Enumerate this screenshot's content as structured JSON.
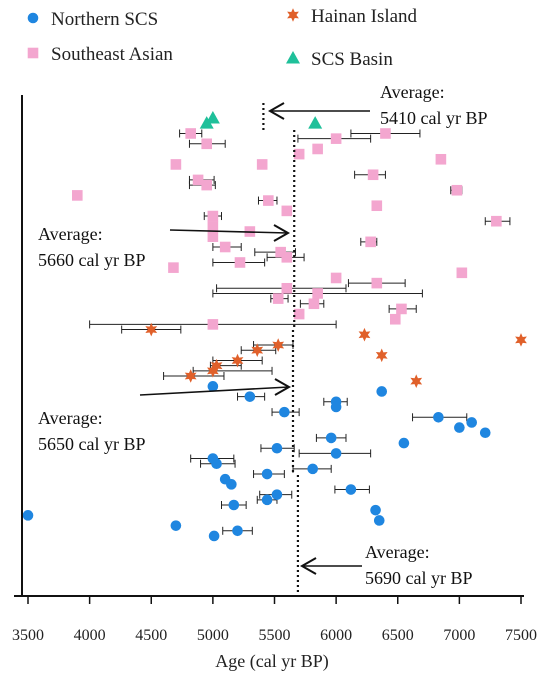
{
  "chart_data": {
    "type": "scatter",
    "xlabel": "Age (cal yr BP)",
    "ylabel": "",
    "xlim": [
      3500,
      7500
    ],
    "x_ticks": [
      "3500",
      "4000",
      "4500",
      "5000",
      "5500",
      "6000",
      "6500",
      "7000",
      "7500"
    ],
    "grid": false,
    "legend_position": "top",
    "legend": [
      {
        "name": "Northern SCS",
        "marker": "circle",
        "color": "#1f86e0"
      },
      {
        "name": "Hainan Island",
        "marker": "star",
        "color": "#e0602a"
      },
      {
        "name": "Southeast Asian",
        "marker": "square",
        "color": "#f3a6cf"
      },
      {
        "name": "SCS Basin",
        "marker": "triangle",
        "color": "#1fc09a"
      }
    ],
    "series": [
      {
        "name": "SCS Basin",
        "marker": "triangle",
        "color": "#1fc09a",
        "points": [
          {
            "x": 4950,
            "y": 1
          },
          {
            "x": 5000,
            "y": 0
          },
          {
            "x": 5830,
            "y": 1
          }
        ]
      },
      {
        "name": "Southeast Asian",
        "marker": "square",
        "color": "#f3a6cf",
        "points": [
          {
            "x": 4820,
            "y": 3,
            "xerr": [
              4730,
              4910
            ]
          },
          {
            "x": 6400,
            "y": 3,
            "xerr": [
              6120,
              6680
            ]
          },
          {
            "x": 6000,
            "y": 4,
            "xerr": [
              5690,
              6280
            ]
          },
          {
            "x": 4950,
            "y": 5,
            "xerr": [
              4810,
              5100
            ]
          },
          {
            "x": 5850,
            "y": 6
          },
          {
            "x": 5700,
            "y": 7
          },
          {
            "x": 4700,
            "y": 9
          },
          {
            "x": 5400,
            "y": 9
          },
          {
            "x": 6850,
            "y": 8
          },
          {
            "x": 6300,
            "y": 11,
            "xerr": [
              6150,
              6400
            ]
          },
          {
            "x": 4880,
            "y": 12,
            "xerr": [
              4810,
              5010
            ]
          },
          {
            "x": 4950,
            "y": 13,
            "xerr": [
              4810,
              5020
            ]
          },
          {
            "x": 6980,
            "y": 14,
            "xerr": [
              6930,
              7020
            ]
          },
          {
            "x": 3900,
            "y": 15
          },
          {
            "x": 5450,
            "y": 16,
            "xerr": [
              5370,
              5520
            ]
          },
          {
            "x": 6330,
            "y": 17
          },
          {
            "x": 5600,
            "y": 18
          },
          {
            "x": 5000,
            "y": 19,
            "xerr": [
              4930,
              5070
            ]
          },
          {
            "x": 7300,
            "y": 20,
            "xerr": [
              7210,
              7410
            ]
          },
          {
            "x": 5000,
            "y": 21
          },
          {
            "x": 5300,
            "y": 22
          },
          {
            "x": 5000,
            "y": 23
          },
          {
            "x": 6280,
            "y": 24,
            "xerr": [
              6200,
              6330
            ]
          },
          {
            "x": 5100,
            "y": 25,
            "xerr": [
              5000,
              5230
            ]
          },
          {
            "x": 5550,
            "y": 26,
            "xerr": [
              5340,
              5670
            ]
          },
          {
            "x": 5600,
            "y": 27,
            "xerr": [
              5440,
              5740
            ]
          },
          {
            "x": 4680,
            "y": 29
          },
          {
            "x": 5220,
            "y": 28,
            "xerr": [
              5000,
              5420
            ]
          },
          {
            "x": 7020,
            "y": 30
          },
          {
            "x": 6000,
            "y": 31
          },
          {
            "x": 6330,
            "y": 32,
            "xerr": [
              6100,
              6560
            ]
          },
          {
            "x": 5600,
            "y": 33,
            "xerr": [
              5030,
              6080
            ]
          },
          {
            "x": 5850,
            "y": 34,
            "xerr": [
              5000,
              6700
            ]
          },
          {
            "x": 5530,
            "y": 35,
            "xerr": [
              5470,
              5610
            ]
          },
          {
            "x": 5820,
            "y": 36,
            "xerr": [
              5710,
              5900
            ]
          },
          {
            "x": 6530,
            "y": 37,
            "xerr": [
              6430,
              6650
            ]
          },
          {
            "x": 5700,
            "y": 38
          },
          {
            "x": 6480,
            "y": 39
          },
          {
            "x": 5000,
            "y": 40,
            "xerr": [
              4000,
              6000
            ]
          }
        ]
      },
      {
        "name": "Hainan Island",
        "marker": "star",
        "color": "#e0602a",
        "points": [
          {
            "x": 4500,
            "y": 41,
            "xerr": [
              4260,
              4740
            ]
          },
          {
            "x": 6230,
            "y": 42
          },
          {
            "x": 7500,
            "y": 43
          },
          {
            "x": 5530,
            "y": 44,
            "xerr": [
              5330,
              5650
            ]
          },
          {
            "x": 5360,
            "y": 45,
            "xerr": [
              5230,
              5510
            ]
          },
          {
            "x": 6370,
            "y": 46
          },
          {
            "x": 5200,
            "y": 47,
            "xerr": [
              5000,
              5400
            ]
          },
          {
            "x": 5030,
            "y": 48,
            "xerr": [
              4980,
              5230
            ]
          },
          {
            "x": 5000,
            "y": 49,
            "xerr": [
              4840,
              5480
            ]
          },
          {
            "x": 4820,
            "y": 50,
            "xerr": [
              4600,
              5090
            ]
          },
          {
            "x": 6650,
            "y": 51
          }
        ]
      },
      {
        "name": "Northern SCS",
        "marker": "circle",
        "color": "#1f86e0",
        "points": [
          {
            "x": 5000,
            "y": 52
          },
          {
            "x": 6370,
            "y": 53
          },
          {
            "x": 5300,
            "y": 54,
            "xerr": [
              5200,
              5420
            ]
          },
          {
            "x": 6000,
            "y": 55,
            "xerr": [
              5900,
              6090
            ]
          },
          {
            "x": 6000,
            "y": 56
          },
          {
            "x": 5580,
            "y": 57,
            "xerr": [
              5480,
              5700
            ]
          },
          {
            "x": 6830,
            "y": 58,
            "xerr": [
              6620,
              7060
            ]
          },
          {
            "x": 7100,
            "y": 59
          },
          {
            "x": 7000,
            "y": 60
          },
          {
            "x": 7210,
            "y": 61
          },
          {
            "x": 5960,
            "y": 62,
            "xerr": [
              5840,
              6080
            ]
          },
          {
            "x": 6550,
            "y": 63
          },
          {
            "x": 5520,
            "y": 64,
            "xerr": [
              5390,
              5660
            ]
          },
          {
            "x": 6000,
            "y": 65,
            "xerr": [
              5700,
              6280
            ]
          },
          {
            "x": 5000,
            "y": 66,
            "xerr": [
              4820,
              5170
            ]
          },
          {
            "x": 5030,
            "y": 67,
            "xerr": [
              4900,
              5180
            ]
          },
          {
            "x": 5810,
            "y": 68,
            "xerr": [
              5650,
              5960
            ]
          },
          {
            "x": 5440,
            "y": 69,
            "xerr": [
              5330,
              5580
            ]
          },
          {
            "x": 5100,
            "y": 70
          },
          {
            "x": 5150,
            "y": 71
          },
          {
            "x": 6120,
            "y": 72,
            "xerr": [
              5990,
              6270
            ]
          },
          {
            "x": 5520,
            "y": 73,
            "xerr": [
              5380,
              5640
            ]
          },
          {
            "x": 5440,
            "y": 74,
            "xerr": [
              5360,
              5520
            ]
          },
          {
            "x": 5170,
            "y": 75,
            "xerr": [
              5070,
              5270
            ]
          },
          {
            "x": 6320,
            "y": 76
          },
          {
            "x": 3500,
            "y": 77
          },
          {
            "x": 6350,
            "y": 78
          },
          {
            "x": 4700,
            "y": 79
          },
          {
            "x": 5200,
            "y": 80,
            "xerr": [
              5080,
              5320
            ]
          },
          {
            "x": 5010,
            "y": 81
          }
        ]
      }
    ],
    "averages": [
      {
        "label": "Average:",
        "value_text": "5410 cal yr BP",
        "x": 5410
      },
      {
        "label": "Average:",
        "value_text": "5660 cal yr BP",
        "x": 5660
      },
      {
        "label": "Average:",
        "value_text": "5650 cal yr BP",
        "x": 5650
      },
      {
        "label": "Average:",
        "value_text": "5690 cal yr BP",
        "x": 5690
      }
    ]
  }
}
